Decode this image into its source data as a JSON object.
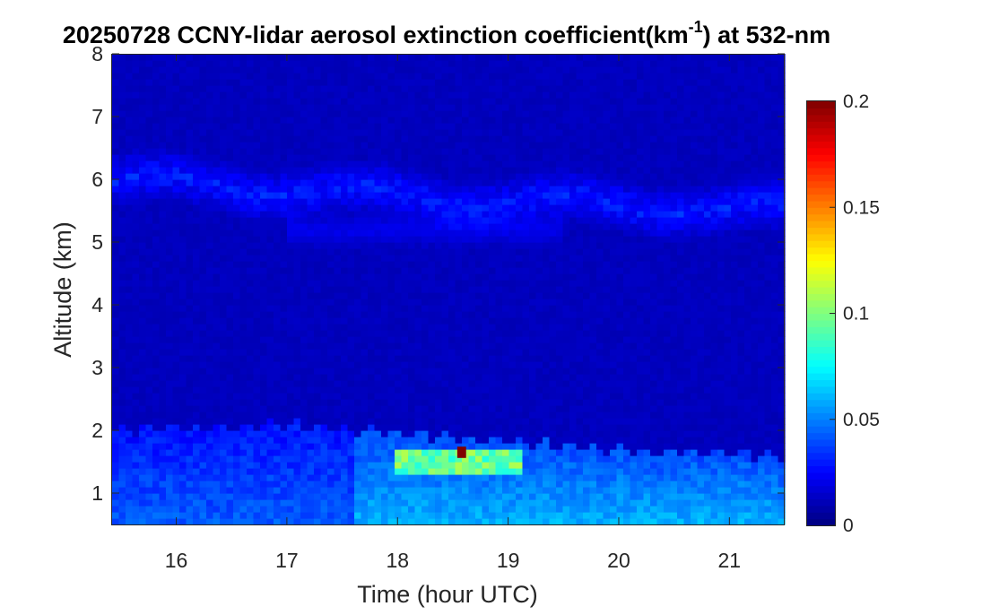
{
  "chart_data": {
    "type": "heatmap",
    "title": {
      "main": "20250728 CCNY-lidar aerosol extinction coefficient(km",
      "superscript": "-1",
      "suffix": ") at 532-nm"
    },
    "xlabel": "Time (hour UTC)",
    "ylabel": "Altitude (km)",
    "xlim": [
      15.42,
      21.5
    ],
    "ylim": [
      0.5,
      8
    ],
    "xticks": [
      16,
      17,
      18,
      19,
      20,
      21
    ],
    "yticks": [
      1,
      2,
      3,
      4,
      5,
      6,
      7,
      8
    ],
    "colorbar": {
      "colormap": "jet",
      "clim": [
        0,
        0.2
      ],
      "ticks": [
        0,
        0.05,
        0.1,
        0.15,
        0.2
      ],
      "tick_labels": [
        "0",
        "0.05",
        "0.1",
        "0.15",
        "0.2"
      ]
    },
    "features": [
      {
        "name": "boundary layer aerosol",
        "x_range": [
          15.42,
          21.5
        ],
        "altitude_top_km": [
          2.0,
          2.1,
          1.9,
          1.7,
          1.6
        ],
        "typical_value": 0.06
      },
      {
        "name": "enhanced layer",
        "x_range": [
          18.0,
          19.1
        ],
        "altitude_km": 1.5,
        "typical_value": 0.1
      },
      {
        "name": "peak pixel",
        "x": 18.58,
        "altitude_km": 1.65,
        "value": 0.2
      },
      {
        "name": "elevated aerosol layer",
        "x_range": [
          15.42,
          21.5
        ],
        "altitude_km": [
          6.0,
          5.7,
          5.5
        ],
        "typical_value": 0.03
      },
      {
        "name": "free troposphere background",
        "value": 0.012
      }
    ],
    "colors": {
      "background": "#ffffff",
      "axis": "#262626"
    }
  }
}
